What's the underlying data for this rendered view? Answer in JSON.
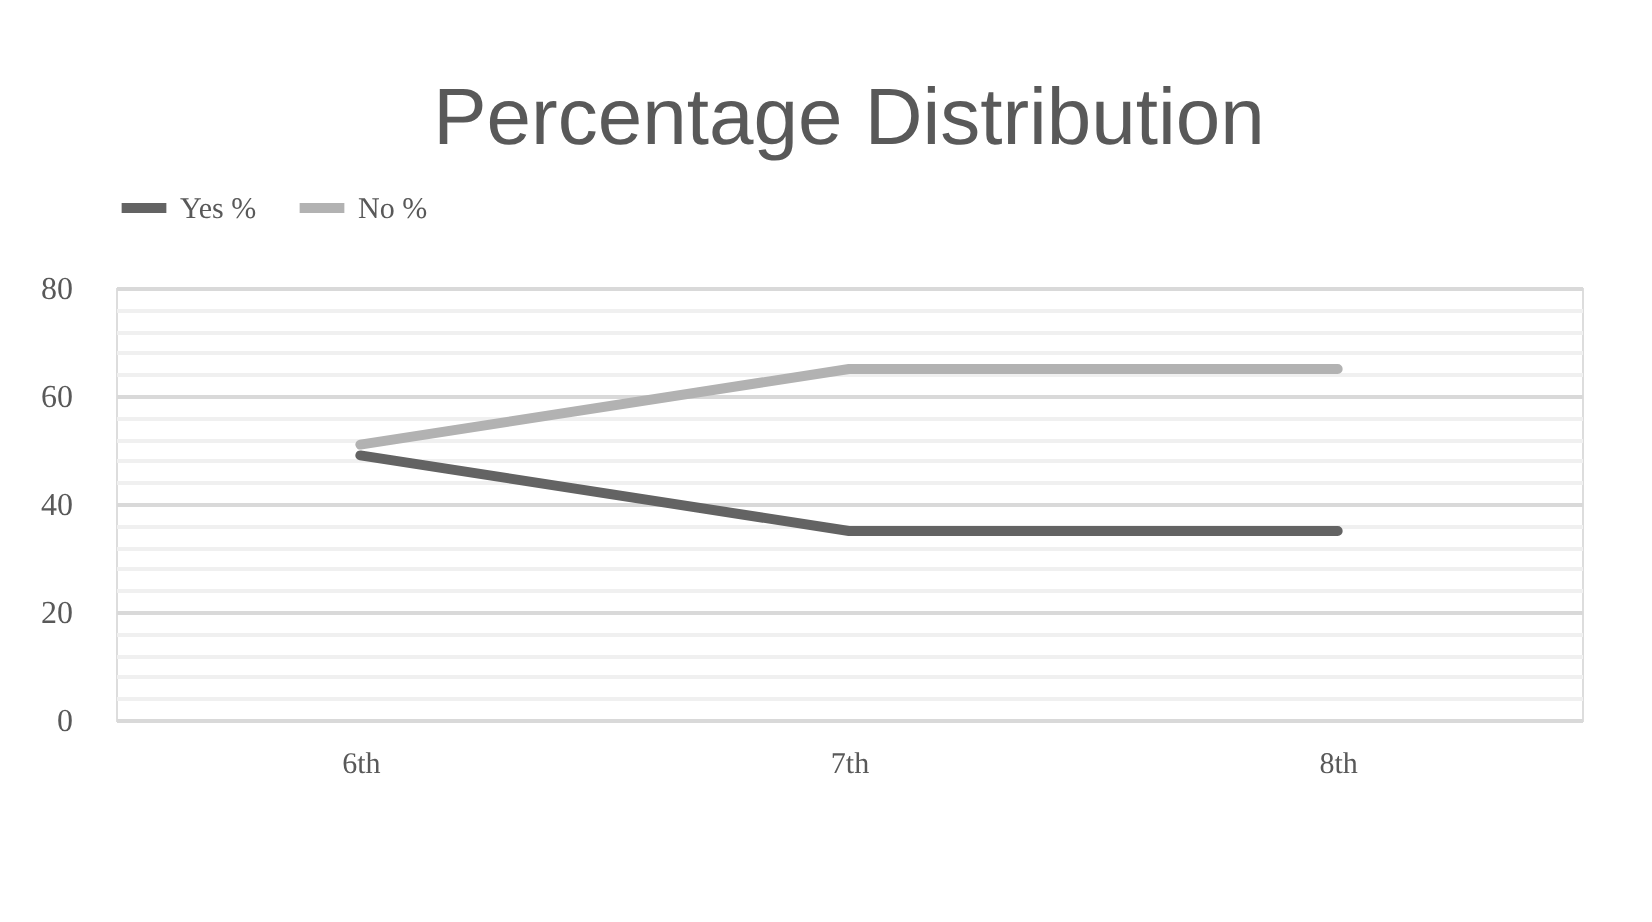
{
  "chart_data": {
    "type": "line",
    "title": "Percentage Distribution",
    "categories": [
      "6th",
      "7th",
      "8th"
    ],
    "series": [
      {
        "name": "Yes %",
        "color": "#636363",
        "values": [
          49,
          35,
          35
        ]
      },
      {
        "name": "No %",
        "color": "#b2b2b2",
        "values": [
          51,
          65,
          65
        ]
      }
    ],
    "ylim": [
      0,
      80
    ],
    "yticks": [
      0,
      {
        "value": 4,
        "label": null
      },
      {
        "value": 8,
        "label": null
      },
      {
        "value": 12,
        "label": null
      },
      {
        "value": 16,
        "label": null
      },
      20,
      {
        "value": 24,
        "label": null
      },
      {
        "value": 28,
        "label": null
      },
      {
        "value": 32,
        "label": null
      },
      {
        "value": 36,
        "label": null
      },
      40,
      {
        "value": 44,
        "label": null
      },
      {
        "value": 48,
        "label": null
      },
      {
        "value": 52,
        "label": null
      },
      {
        "value": 56,
        "label": null
      },
      60,
      {
        "value": 64,
        "label": null
      },
      {
        "value": 68,
        "label": null
      },
      {
        "value": 72,
        "label": null
      },
      {
        "value": 76,
        "label": null
      },
      80
    ],
    "grid": true,
    "legend": "top",
    "marker": "none",
    "line_style": "solid"
  }
}
